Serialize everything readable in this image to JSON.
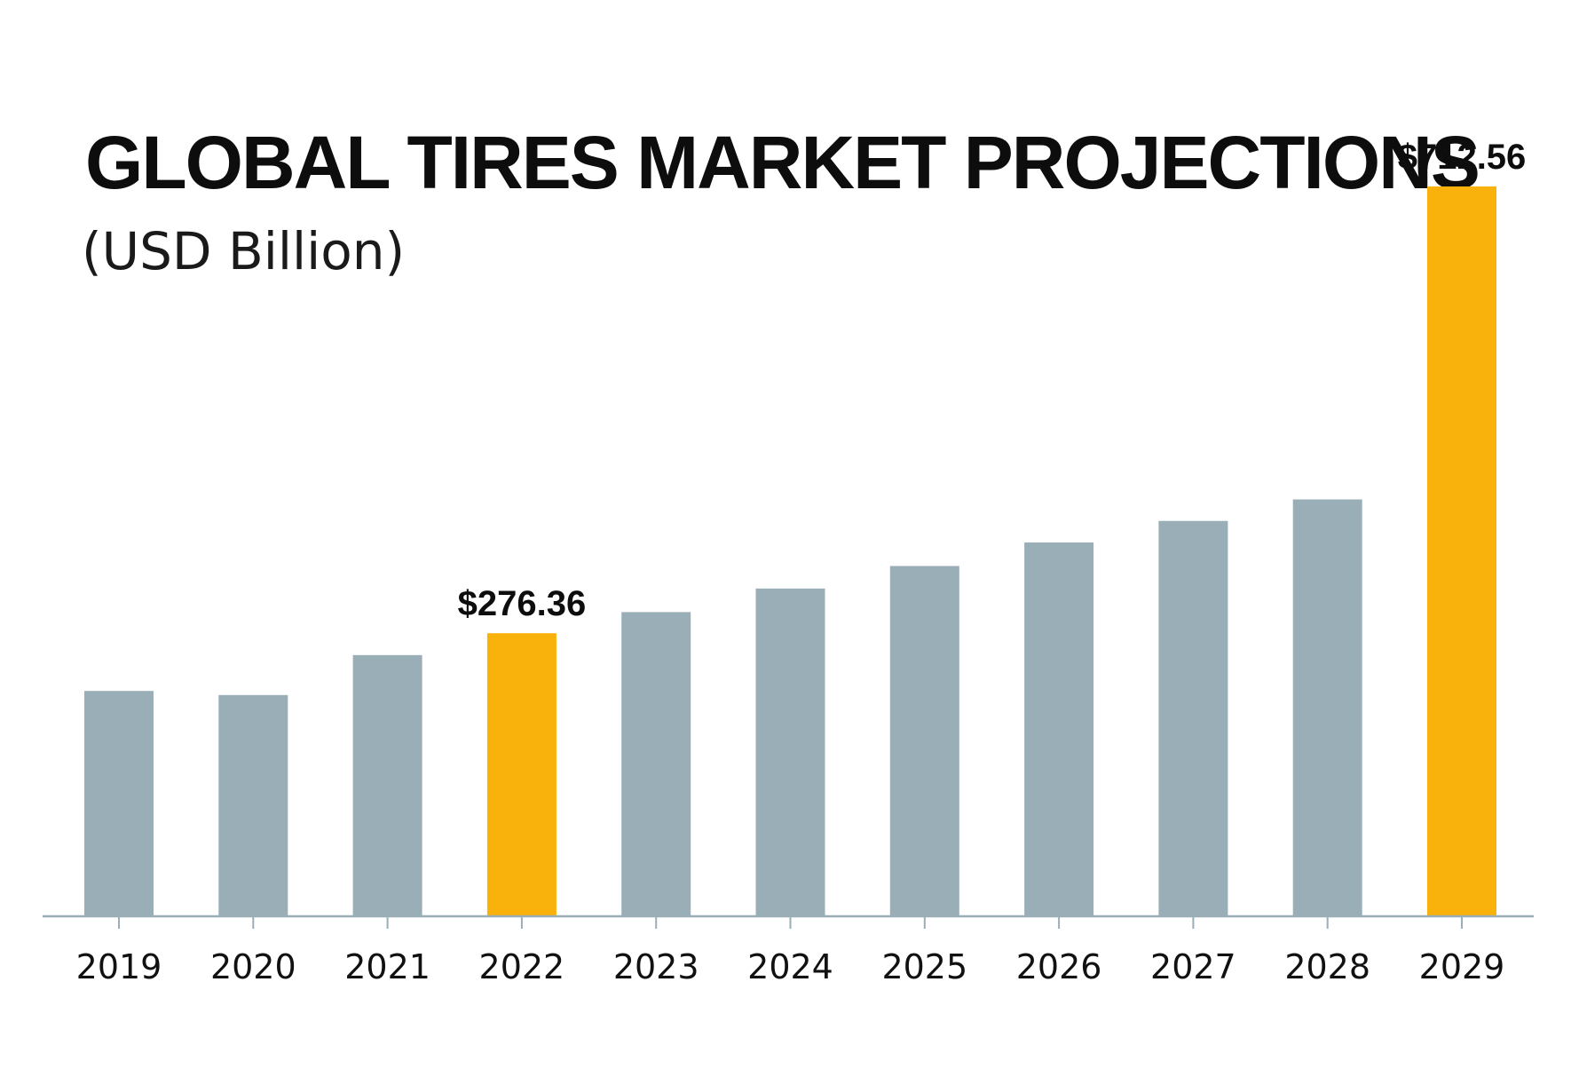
{
  "chart_data": {
    "type": "bar",
    "title": "GLOBAL TIRES MARKET PROJECTIONS",
    "subtitle": "(USD Billion)",
    "xlabel": "",
    "ylabel": "",
    "categories": [
      "2019",
      "2020",
      "2021",
      "2022",
      "2023",
      "2024",
      "2025",
      "2026",
      "2027",
      "2028",
      "2029"
    ],
    "values": [
      220,
      216,
      255,
      276.36,
      297,
      320,
      342,
      365,
      386,
      407,
      712.56
    ],
    "highlighted": [
      "2022",
      "2029"
    ],
    "data_labels": [
      {
        "category": "2022",
        "text": "$276.36"
      },
      {
        "category": "2029",
        "text": "$712.56"
      }
    ],
    "ylim": [
      0,
      712.56
    ],
    "grid": false,
    "legend": "none",
    "colors": {
      "bar": "#9aaeb8",
      "highlight": "#f9b10b",
      "axis": "#9aaeb8",
      "text": "#0d0d0d"
    }
  }
}
